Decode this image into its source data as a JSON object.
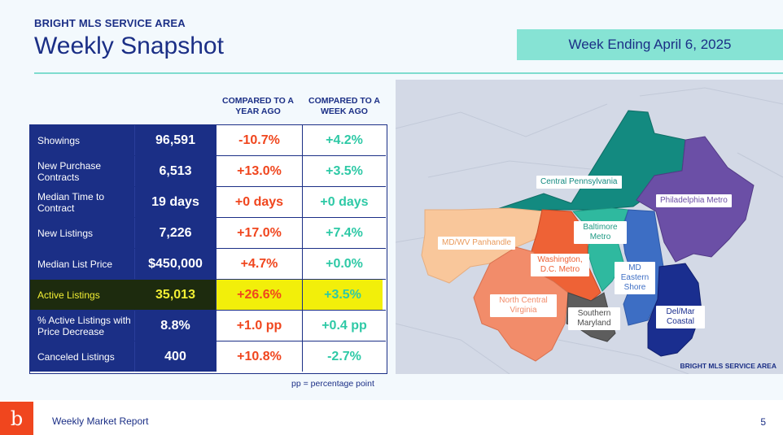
{
  "header": {
    "eyebrow": "BRIGHT MLS SERVICE AREA",
    "title": "Weekly Snapshot",
    "week_ending": "Week Ending April 6, 2025"
  },
  "columns": {
    "yoy": "COMPARED TO A YEAR AGO",
    "wow": "COMPARED TO A WEEK AGO"
  },
  "rows": [
    {
      "label": "Showings",
      "value": "96,591",
      "yoy": "-10.7%",
      "wow": "+4.2%"
    },
    {
      "label": "New Purchase Contracts",
      "value": "6,513",
      "yoy": "+13.0%",
      "wow": "+3.5%"
    },
    {
      "label": "Median Time to Contract",
      "value": "19 days",
      "yoy": "+0 days",
      "wow": "+0 days"
    },
    {
      "label": "New Listings",
      "value": "7,226",
      "yoy": "+17.0%",
      "wow": "+7.4%"
    },
    {
      "label": "Median List Price",
      "value": "$450,000",
      "yoy": "+4.7%",
      "wow": "+0.0%"
    },
    {
      "label": "Active Listings",
      "value": "35,013",
      "yoy": "+26.6%",
      "wow": "+3.5%",
      "highlight": true
    },
    {
      "label": "% Active Listings with Price Decrease",
      "value": "8.8%",
      "yoy": "+1.0 pp",
      "wow": "+0.4 pp"
    },
    {
      "label": "Canceled Listings",
      "value": "400",
      "yoy": "+10.8%",
      "wow": "-2.7%"
    }
  ],
  "pp_note": "pp = percentage point",
  "map": {
    "footer": "BRIGHT MLS SERVICE AREA",
    "regions": {
      "central_pa": {
        "label": "Central Pennsylvania",
        "color": "#138a80"
      },
      "philly": {
        "label": "Philadelphia Metro",
        "color": "#6b4fa6"
      },
      "md_wv": {
        "label": "MD/WV Panhandle",
        "color": "#f9c79b"
      },
      "baltimore": {
        "label": "Baltimore Metro",
        "color": "#2fb99f"
      },
      "washington": {
        "label": "Washington, D.C. Metro",
        "color": "#ee6236"
      },
      "md_eastern": {
        "label": "MD Eastern Shore",
        "color": "#3d6ec4"
      },
      "n_virginia": {
        "label": "North Central Virginia",
        "color": "#f28c6a"
      },
      "s_maryland": {
        "label": "Southern Maryland",
        "color": "#5d5d5d"
      },
      "delmar": {
        "label": "Del/Mar Coastal",
        "color": "#1a2e8f"
      }
    }
  },
  "footer": {
    "logo": "b",
    "text": "Weekly Market Report",
    "page": "5"
  },
  "colors": {
    "navy": "#1b2f86",
    "orange": "#f0461e",
    "teal": "#2ec9a6",
    "highlight": "#f2ef0a",
    "band": "#86e3d4"
  }
}
